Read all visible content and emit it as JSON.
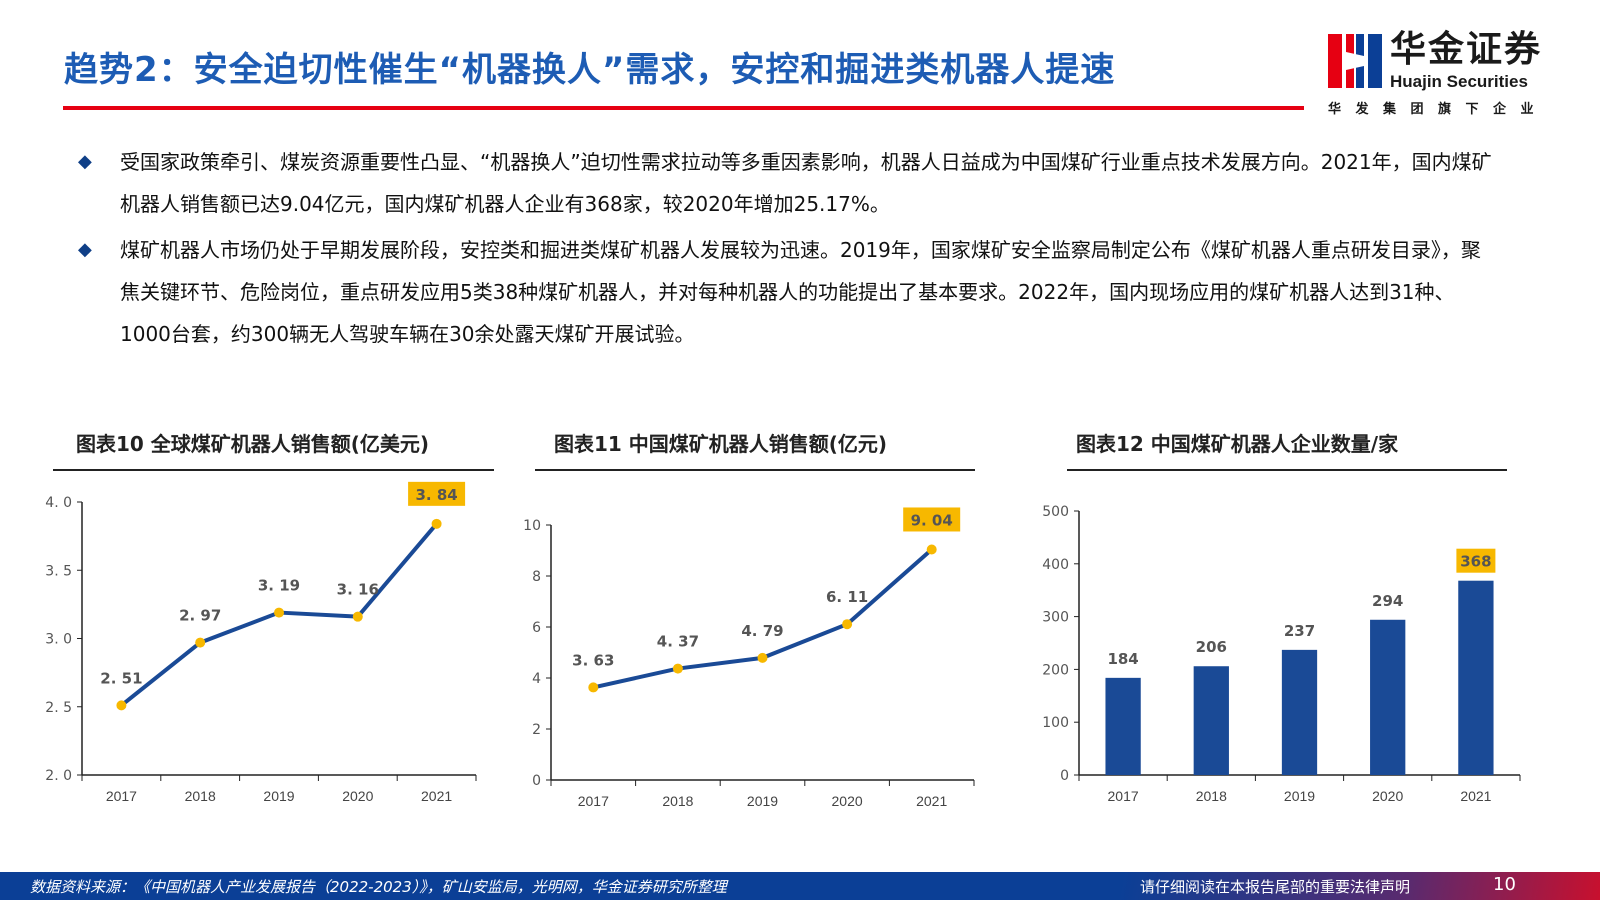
{
  "header": {
    "title": "趋势2：安全迫切性催生“机器换人”需求，安控和掘进类机器人提速",
    "logo": {
      "cn": "华金证券",
      "en": "Huajin Securities",
      "sub": "华发集团旗下企业"
    }
  },
  "bullets": [
    "受国家政策牵引、煤炭资源重要性凸显、“机器换人”迫切性需求拉动等多重因素影响，机器人日益成为中国煤矿行业重点技术发展方向。2021年，国内煤矿机器人销售额已达9.04亿元，国内煤矿机器人企业有368家，较2020年增加25.17%。",
    "煤矿机器人市场仍处于早期发展阶段，安控类和掘进类煤矿机器人发展较为迅速。2019年，国家煤矿安全监察局制定公布《煤矿机器人重点研发目录》，聚焦关键环节、危险岗位，重点研发应用5类38种煤矿机器人，并对每种机器人的功能提出了基本要求。2022年，国内现场应用的煤矿机器人达到31种、1000台套，约300辆无人驾驶车辆在30余处露天煤矿开展试验。"
  ],
  "colors": {
    "line": "#1a4a96",
    "bar": "#1a4a96",
    "marker": "#f7b800",
    "highlight": "#f7b800",
    "title": "#1d5cb4",
    "rule": "#e60012"
  },
  "chart_data": [
    {
      "type": "line",
      "title": "图表10 全球煤矿机器人销售额(亿美元)",
      "categories": [
        "2017",
        "2018",
        "2019",
        "2020",
        "2021"
      ],
      "values": [
        2.51,
        2.97,
        3.19,
        3.16,
        3.84
      ],
      "labels": [
        "2.51",
        "2.97",
        "3.19",
        "3.16",
        "3.84"
      ],
      "ylim": [
        2.0,
        4.0
      ],
      "yticks": [
        "2.0",
        "2.5",
        "3.0",
        "3.5",
        "4.0"
      ],
      "highlight_last": true,
      "grid": false
    },
    {
      "type": "line",
      "title": "图表11 中国煤矿机器人销售额(亿元)",
      "categories": [
        "2017",
        "2018",
        "2019",
        "2020",
        "2021"
      ],
      "values": [
        3.63,
        4.37,
        4.79,
        6.11,
        9.04
      ],
      "labels": [
        "3.63",
        "4.37",
        "4.79",
        "6.11",
        "9.04"
      ],
      "ylim": [
        0,
        10
      ],
      "yticks": [
        "0",
        "2",
        "4",
        "6",
        "8",
        "10"
      ],
      "highlight_last": true,
      "grid": false
    },
    {
      "type": "bar",
      "title": "图表12 中国煤矿机器人企业数量/家",
      "categories": [
        "2017",
        "2018",
        "2019",
        "2020",
        "2021"
      ],
      "values": [
        184,
        206,
        237,
        294,
        368
      ],
      "labels": [
        "184",
        "206",
        "237",
        "294",
        "368"
      ],
      "ylim": [
        0,
        500
      ],
      "yticks": [
        "0",
        "100",
        "200",
        "300",
        "400",
        "500"
      ],
      "highlight_last": true,
      "grid": false
    }
  ],
  "footer": {
    "source": "数据资料来源：《中国机器人产业发展报告（2022-2023）》，矿山安监局，光明网，华金证券研究所整理",
    "legal": "请仔细阅读在本报告尾部的重要法律声明",
    "page": "10"
  }
}
